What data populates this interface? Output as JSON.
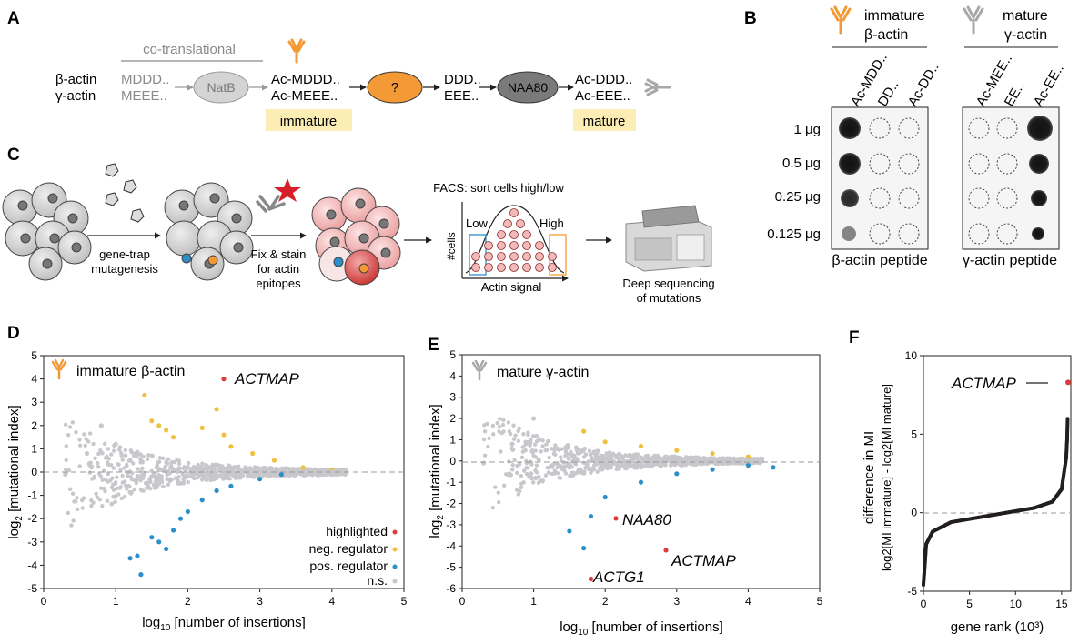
{
  "colors": {
    "orange": "#f39a36",
    "blue": "#2b8fc9",
    "yellow": "#f0c040",
    "red": "#e03b3b",
    "grey": "#c8c8cc",
    "highlight_bg": "#fcedb5",
    "dark": "#231f20"
  },
  "icons": [
    "antibody-icon",
    "star-icon",
    "virus-icon",
    "cell-icon",
    "sequencer-icon",
    "arrow-icon"
  ],
  "panelA": {
    "letter": "A",
    "header": "co-translational",
    "inputs": [
      "β-actin",
      "γ-actin"
    ],
    "precursors": [
      "MDDD..",
      "MEEE.."
    ],
    "natb": "NatB",
    "immature_seqs": [
      "Ac-MDDD..",
      "Ac-MEEE.."
    ],
    "immature_label": "immature",
    "question": "?",
    "mid_seqs": [
      "DDD..",
      "EEE.."
    ],
    "naa80": "NAA80",
    "mature_seqs": [
      "Ac-DDD..",
      "Ac-EEE.."
    ],
    "mature_label": "mature"
  },
  "panelB": {
    "letter": "B",
    "ab1": [
      "immature",
      "β-actin"
    ],
    "ab2": [
      "mature",
      "γ-actin"
    ],
    "cols1": [
      "Ac-MDD..",
      "DD..",
      "Ac-DD.."
    ],
    "cols2": [
      "Ac-MEE..",
      "EE..",
      "Ac-EE.."
    ],
    "rows": [
      "1 μg",
      "0.5 μg",
      "0.25 μg",
      "0.125 μg"
    ],
    "xlabel1": "β-actin peptide",
    "xlabel2": "γ-actin peptide"
  },
  "panelC": {
    "letter": "C",
    "step1": [
      "gene-trap",
      "mutagenesis"
    ],
    "step2": [
      "Fix & stain",
      "for actin",
      "epitopes"
    ],
    "facs_title": "FACS: sort cells high/low",
    "low": "Low",
    "high": "High",
    "ylabel": "#cells",
    "xlabel": "Actin signal",
    "step4": [
      "Deep sequencing",
      "of mutations"
    ]
  },
  "panelD": {
    "letter": "D",
    "title": "immature β-actin",
    "annotation": "ACTMAP",
    "legend": [
      {
        "label": "highlighted",
        "color": "#e03b3b"
      },
      {
        "label": "neg. regulator",
        "color": "#f0c040"
      },
      {
        "label": "pos. regulator",
        "color": "#2b8fc9"
      },
      {
        "label": "n.s.",
        "color": "#c8c8cc"
      }
    ],
    "xlabel_pre": "log",
    "xlabel_sub": "10",
    "xlabel_post": " [number of insertions]",
    "ylabel_pre": "log",
    "ylabel_sub": "2",
    "ylabel_post": " [mutational index]",
    "xticks": [
      "0",
      "1",
      "2",
      "3",
      "4",
      "5"
    ],
    "yticks": [
      "5",
      "4",
      "3",
      "2",
      "1",
      "0",
      "-1",
      "-2",
      "-3",
      "-4",
      "-5"
    ]
  },
  "panelE": {
    "letter": "E",
    "title": "mature γ-actin",
    "annotations": [
      "NAA80",
      "ACTMAP",
      "ACTG1"
    ],
    "xlabel_pre": "log",
    "xlabel_sub": "10",
    "xlabel_post": " [number of insertions]",
    "ylabel_pre": "log",
    "ylabel_sub": "2",
    "ylabel_post": " [mutational index]",
    "xticks": [
      "0",
      "1",
      "2",
      "3",
      "4",
      "5"
    ],
    "yticks": [
      "5",
      "4",
      "3",
      "2",
      "1",
      "0",
      "-1",
      "-2",
      "-3",
      "-4",
      "-5",
      "-6"
    ]
  },
  "panelF": {
    "letter": "F",
    "annotation": "ACTMAP",
    "ylabel_top": "difference in MI",
    "ylabel_bottom": "log2[MI immature] - log2[MI mature]",
    "xlabel": "gene rank (10³)",
    "xticks": [
      "0",
      "5",
      "10",
      "15"
    ],
    "yticks": [
      "10",
      "5",
      "0",
      "-5"
    ]
  },
  "chart_data": [
    {
      "type": "scatter",
      "panel": "D",
      "title": "immature β-actin",
      "xlabel": "log10 [number of insertions]",
      "ylabel": "log2 [mutational index]",
      "xlim": [
        0,
        5
      ],
      "ylim": [
        -5,
        5
      ],
      "grid": false,
      "legend_position": "bottom-right",
      "series": [
        {
          "name": "highlighted",
          "points": [
            [
              2.5,
              4.0
            ]
          ]
        },
        {
          "name": "neg. regulator",
          "points": [
            [
              1.4,
              3.3
            ],
            [
              1.5,
              2.2
            ],
            [
              1.6,
              2.0
            ],
            [
              1.7,
              1.8
            ],
            [
              1.8,
              1.5
            ],
            [
              2.2,
              1.9
            ],
            [
              2.4,
              2.7
            ],
            [
              2.5,
              1.6
            ],
            [
              2.6,
              1.1
            ],
            [
              2.9,
              0.8
            ],
            [
              3.2,
              0.5
            ],
            [
              3.6,
              0.2
            ],
            [
              4.0,
              0.1
            ]
          ]
        },
        {
          "name": "pos. regulator",
          "points": [
            [
              1.2,
              -3.7
            ],
            [
              1.3,
              -3.6
            ],
            [
              1.35,
              -4.4
            ],
            [
              1.5,
              -2.8
            ],
            [
              1.6,
              -3.0
            ],
            [
              1.7,
              -3.3
            ],
            [
              1.8,
              -2.5
            ],
            [
              1.9,
              -2.0
            ],
            [
              2.0,
              -1.7
            ],
            [
              2.2,
              -1.2
            ],
            [
              2.4,
              -0.8
            ],
            [
              2.6,
              -0.6
            ],
            [
              3.0,
              -0.3
            ],
            [
              3.3,
              -0.1
            ]
          ]
        },
        {
          "name": "n.s.",
          "points": [
            [
              0.3,
              -0.1
            ],
            [
              0.6,
              0.8
            ],
            [
              0.8,
              2.0
            ],
            [
              1.0,
              1.2
            ],
            [
              1.2,
              0.5
            ],
            [
              1.5,
              -0.2
            ],
            [
              2.0,
              0.2
            ],
            [
              2.5,
              -0.1
            ],
            [
              3.0,
              0.1
            ],
            [
              3.5,
              0.0
            ],
            [
              4.0,
              0.0
            ]
          ]
        }
      ]
    },
    {
      "type": "scatter",
      "panel": "E",
      "title": "mature γ-actin",
      "xlabel": "log10 [number of insertions]",
      "ylabel": "log2 [mutational index]",
      "xlim": [
        0,
        5
      ],
      "ylim": [
        -6,
        5
      ],
      "grid": false,
      "series": [
        {
          "name": "highlighted",
          "points": [
            [
              2.15,
              -2.7
            ],
            [
              2.85,
              -4.2
            ],
            [
              1.8,
              -5.55
            ]
          ]
        },
        {
          "name": "neg. regulator",
          "points": [
            [
              1.7,
              1.4
            ],
            [
              2.0,
              0.9
            ],
            [
              2.5,
              0.7
            ],
            [
              3.0,
              0.5
            ],
            [
              3.5,
              0.35
            ],
            [
              4.0,
              0.2
            ]
          ]
        },
        {
          "name": "pos. regulator",
          "points": [
            [
              1.5,
              -3.3
            ],
            [
              1.7,
              -4.1
            ],
            [
              1.8,
              -2.6
            ],
            [
              2.0,
              -1.7
            ],
            [
              2.5,
              -1.0
            ],
            [
              3.0,
              -0.6
            ],
            [
              3.5,
              -0.4
            ],
            [
              4.0,
              -0.2
            ],
            [
              4.35,
              -0.3
            ]
          ]
        },
        {
          "name": "n.s.",
          "points": [
            [
              0.3,
              -0.1
            ],
            [
              0.7,
              0.8
            ],
            [
              1.0,
              2.0
            ],
            [
              1.2,
              4.0
            ],
            [
              1.5,
              -0.3
            ],
            [
              2.0,
              0.1
            ],
            [
              3.0,
              0.0
            ],
            [
              4.0,
              0.0
            ]
          ]
        }
      ]
    },
    {
      "type": "scatter",
      "panel": "F",
      "xlabel": "gene rank (10³)",
      "ylabel": "difference in MI",
      "xlim": [
        0,
        16
      ],
      "ylim": [
        -5,
        10
      ],
      "grid": false,
      "series": [
        {
          "name": "genes",
          "points": [
            [
              0,
              -4.6
            ],
            [
              0.3,
              -2.0
            ],
            [
              1,
              -1.2
            ],
            [
              3,
              -0.6
            ],
            [
              6,
              -0.3
            ],
            [
              9,
              0.0
            ],
            [
              12,
              0.3
            ],
            [
              14,
              0.7
            ],
            [
              15,
              1.5
            ],
            [
              15.5,
              3.5
            ],
            [
              15.6,
              4.7
            ],
            [
              15.65,
              6.0
            ]
          ]
        },
        {
          "name": "highlighted",
          "points": [
            [
              15.7,
              8.3
            ]
          ]
        }
      ]
    }
  ]
}
